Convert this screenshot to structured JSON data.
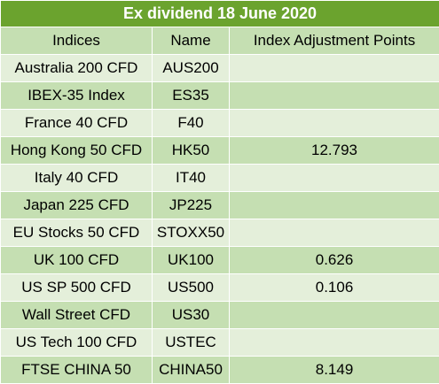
{
  "title": "Ex dividend 18 June 2020",
  "columns": [
    "Indices",
    "Name",
    "Index Adjustment Points"
  ],
  "rows": [
    {
      "index": "Australia 200 CFD",
      "name": "AUS200",
      "points": ""
    },
    {
      "index": "IBEX-35 Index",
      "name": "ES35",
      "points": ""
    },
    {
      "index": "France 40 CFD",
      "name": "F40",
      "points": ""
    },
    {
      "index": "Hong Kong 50 CFD",
      "name": "HK50",
      "points": "12.793"
    },
    {
      "index": "Italy 40 CFD",
      "name": "IT40",
      "points": ""
    },
    {
      "index": "Japan 225 CFD",
      "name": "JP225",
      "points": ""
    },
    {
      "index": "EU Stocks 50 CFD",
      "name": "STOXX50",
      "points": ""
    },
    {
      "index": "UK 100 CFD",
      "name": "UK100",
      "points": "0.626"
    },
    {
      "index": "US SP 500 CFD",
      "name": "US500",
      "points": "0.106"
    },
    {
      "index": "Wall Street CFD",
      "name": "US30",
      "points": ""
    },
    {
      "index": "US Tech 100 CFD",
      "name": "USTEC",
      "points": ""
    },
    {
      "index": "FTSE CHINA 50",
      "name": "CHINA50",
      "points": "8.149"
    }
  ],
  "colors": {
    "title_bg": "#6ba32e",
    "title_text": "#ffffff",
    "header_bg": "#c5dfb2",
    "row_dark": "#c5dfb2",
    "row_light": "#e4efda"
  }
}
